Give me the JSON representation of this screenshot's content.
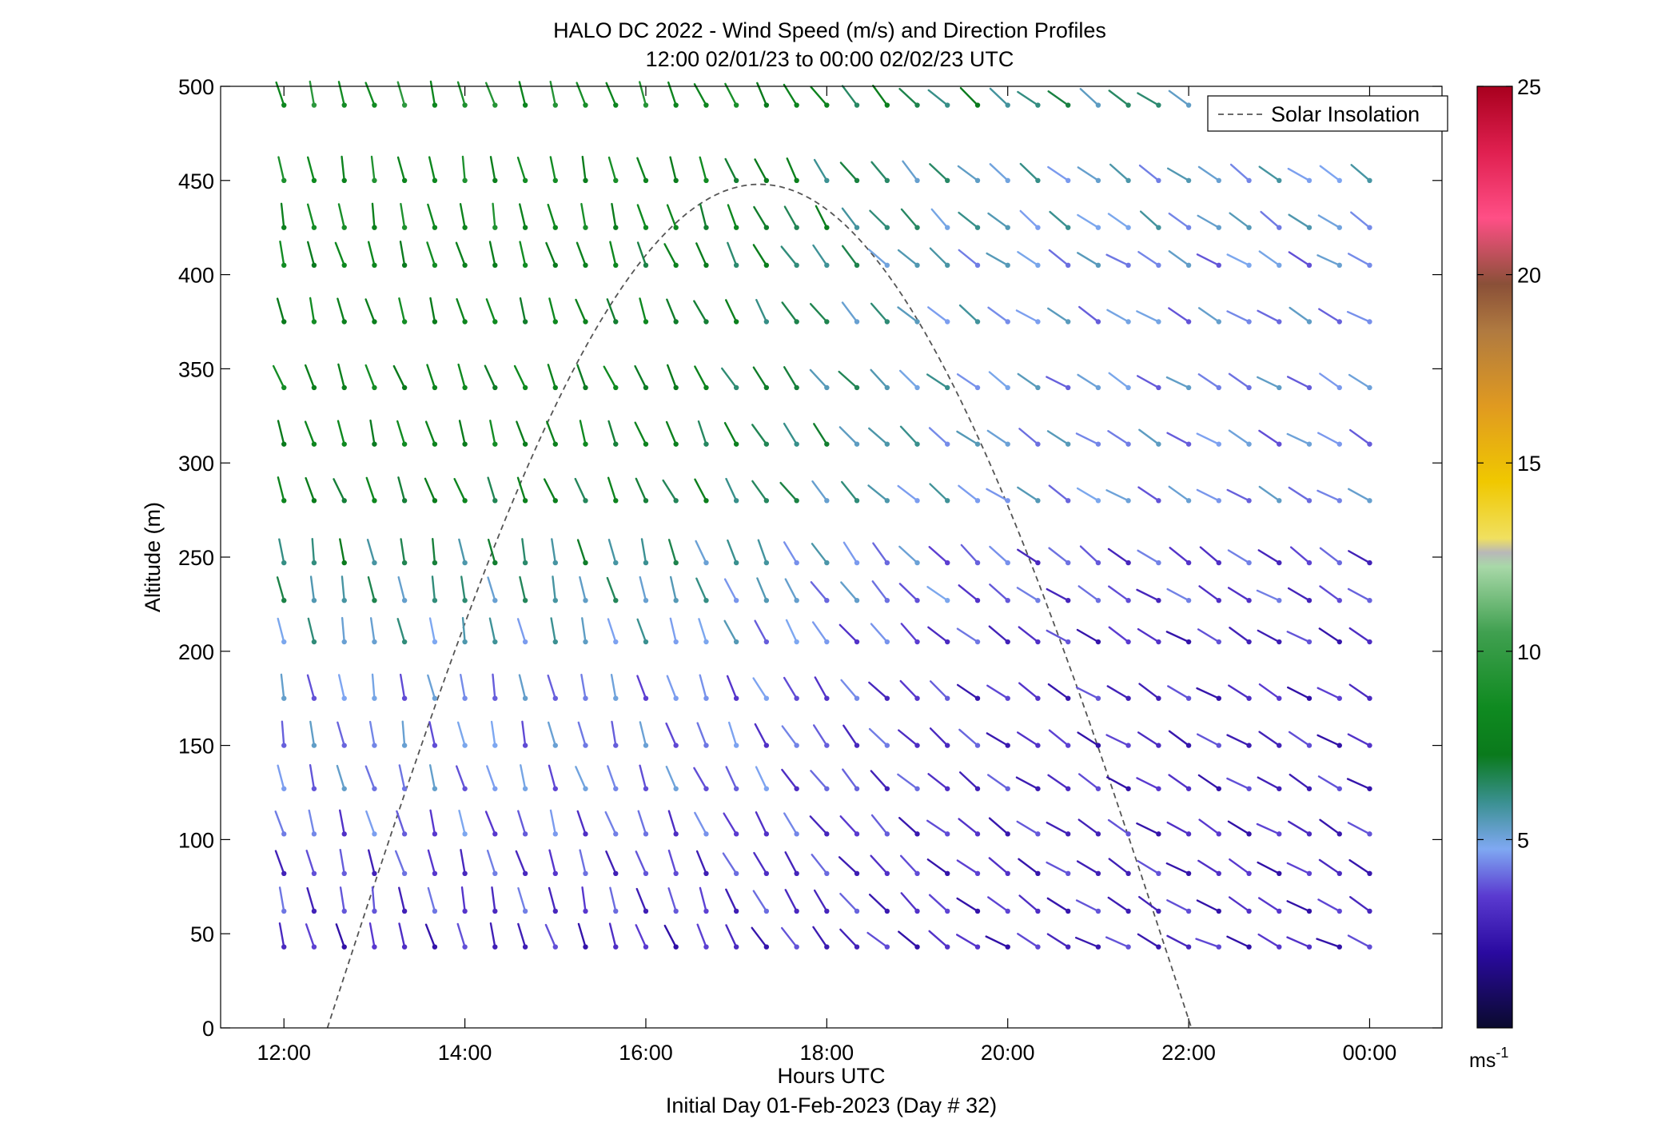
{
  "chart_data": {
    "type": "wind-barb-profile",
    "title": "HALO DC 2022 - Wind Speed (m/s) and Direction Profiles",
    "subtitle": "12:00 02/01/23 to 00:00 02/02/23  UTC",
    "xlabel": "Hours UTC",
    "xlabel2": "Initial Day 01-Feb-2023 (Day # 32)",
    "ylabel": "Altitude (m)",
    "xlim": [
      -0.7,
      12.8
    ],
    "ylim": [
      0,
      500
    ],
    "x_ticks": [
      {
        "value": 0,
        "label": "12:00"
      },
      {
        "value": 2,
        "label": "14:00"
      },
      {
        "value": 4,
        "label": "16:00"
      },
      {
        "value": 6,
        "label": "18:00"
      },
      {
        "value": 8,
        "label": "20:00"
      },
      {
        "value": 10,
        "label": "22:00"
      },
      {
        "value": 12,
        "label": "00:00"
      }
    ],
    "y_ticks": [
      "0",
      "50",
      "100",
      "150",
      "200",
      "250",
      "300",
      "350",
      "400",
      "450",
      "500"
    ],
    "colorbar": {
      "range": [
        0,
        25
      ],
      "ticks": [
        "5",
        "10",
        "15",
        "20",
        "25"
      ],
      "unit_base": "ms",
      "unit_exp": "-1"
    },
    "legend": {
      "label": "Solar Insolation",
      "position": "top-right"
    },
    "solar_insolation": {
      "sunrise_hours": 0.48,
      "sunset_hours": 10.03,
      "peak_altitude_m": 448
    },
    "barbs": {
      "times_hours": [
        0,
        0.333,
        0.667,
        1,
        1.333,
        1.667,
        2,
        2.333,
        2.667,
        3,
        3.333,
        3.667,
        4,
        4.333,
        4.667,
        5,
        5.333,
        5.667,
        6,
        6.333,
        6.667,
        7,
        7.333,
        7.667,
        8,
        8.333,
        8.667,
        9,
        9.333,
        9.667,
        10,
        10.333,
        10.667,
        11,
        11.333,
        11.667,
        12
      ],
      "rows": [
        {
          "alt": 490,
          "last": 30,
          "dir0": 345,
          "dir1": 305,
          "spd0": 9.0,
          "spd1": 6.0
        },
        {
          "alt": 450,
          "last": 36,
          "dir0": 350,
          "dir1": 305,
          "spd0": 8.5,
          "spd1": 5.0
        },
        {
          "alt": 425,
          "last": 36,
          "dir0": 350,
          "dir1": 305,
          "spd0": 8.5,
          "spd1": 5.0
        },
        {
          "alt": 405,
          "last": 36,
          "dir0": 345,
          "dir1": 300,
          "spd0": 8.0,
          "spd1": 4.5
        },
        {
          "alt": 375,
          "last": 36,
          "dir0": 345,
          "dir1": 300,
          "spd0": 8.0,
          "spd1": 4.5
        },
        {
          "alt": 340,
          "last": 36,
          "dir0": 340,
          "dir1": 300,
          "spd0": 8.0,
          "spd1": 4.5
        },
        {
          "alt": 310,
          "last": 36,
          "dir0": 345,
          "dir1": 300,
          "spd0": 8.0,
          "spd1": 4.5
        },
        {
          "alt": 280,
          "last": 36,
          "dir0": 340,
          "dir1": 300,
          "spd0": 7.5,
          "spd1": 4.5
        },
        {
          "alt": 247,
          "last": 36,
          "dir0": 350,
          "dir1": 305,
          "spd0": 6.5,
          "spd1": 3.5
        },
        {
          "alt": 227,
          "last": 36,
          "dir0": 350,
          "dir1": 300,
          "spd0": 6.0,
          "spd1": 3.5
        },
        {
          "alt": 205,
          "last": 36,
          "dir0": 350,
          "dir1": 300,
          "spd0": 5.5,
          "spd1": 3.0
        },
        {
          "alt": 175,
          "last": 36,
          "dir0": 350,
          "dir1": 300,
          "spd0": 4.5,
          "spd1": 3.0
        },
        {
          "alt": 150,
          "last": 36,
          "dir0": 350,
          "dir1": 300,
          "spd0": 4.5,
          "spd1": 3.0
        },
        {
          "alt": 127,
          "last": 36,
          "dir0": 345,
          "dir1": 300,
          "spd0": 4.5,
          "spd1": 3.0
        },
        {
          "alt": 103,
          "last": 36,
          "dir0": 345,
          "dir1": 300,
          "spd0": 4.0,
          "spd1": 3.0
        },
        {
          "alt": 82,
          "last": 36,
          "dir0": 345,
          "dir1": 300,
          "spd0": 3.5,
          "spd1": 3.0
        },
        {
          "alt": 62,
          "last": 36,
          "dir0": 350,
          "dir1": 300,
          "spd0": 3.5,
          "spd1": 3.0
        },
        {
          "alt": 43,
          "last": 36,
          "dir0": 345,
          "dir1": 295,
          "spd0": 3.0,
          "spd1": 3.0
        }
      ]
    }
  }
}
